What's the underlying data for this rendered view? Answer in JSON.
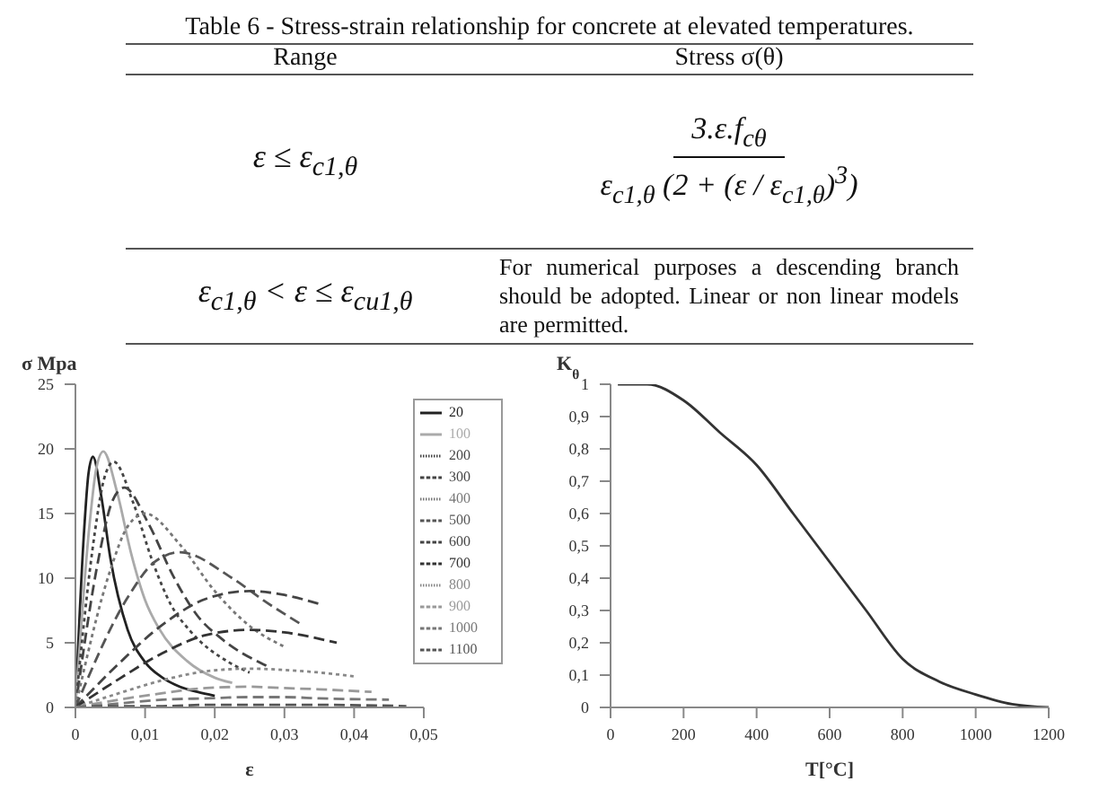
{
  "chart_data": [
    {
      "type": "other",
      "title": "Table 6 - Stress-strain relationship for concrete at elevated temperatures.",
      "annotations": [
        "Range",
        "Stress σ(θ)",
        "ε ≤ ε$_{c1,θ}$",
        "3.ε.f$_{cθ}$",
        "ε$_{c1,θ}$ (2 + (ε / ε$_{c1,θ}$)$^{3}$)",
        "ε$_{c1,θ}$ < ε ≤ ε$_{cu1,θ}$",
        "For numerical purposes a descending branch should be adopted. Linear or non linear models are permitted."
      ]
    },
    {
      "type": "line",
      "xlabel": "ε",
      "ylabel": "σ Mpa",
      "xlim": [
        0,
        0.05
      ],
      "ylim": [
        0,
        25
      ],
      "xticks": [
        0,
        {
          "value": 0.01,
          "label": "0,01"
        },
        {
          "value": 0.02,
          "label": "0,02"
        },
        {
          "value": 0.03,
          "label": "0,03"
        },
        {
          "value": 0.04,
          "label": "0,04"
        },
        {
          "value": 0.05,
          "label": "0,05"
        }
      ],
      "yticks": [
        0,
        5,
        10,
        15,
        20,
        25
      ],
      "grid": false,
      "legend": "top right",
      "marker": "none",
      "series": [
        {
          "name": "20",
          "color": "#222222",
          "line_style": "solid",
          "x": [
            0,
            0.00125,
            0.001875,
            0.0025,
            0.00375,
            0.005,
            0.0075,
            0.01,
            0.0125,
            0.015,
            0.0175,
            0.02
          ],
          "values": [
            0,
            13.7,
            18.1,
            19.4,
            16.2,
            11.6,
            6.0,
            3.5,
            2.3,
            1.6,
            1.2,
            0.9
          ]
        },
        {
          "name": "100",
          "color": "#aaaaaa",
          "line_style": "solid",
          "x": [
            0,
            0.002,
            0.003,
            0.004,
            0.006,
            0.008,
            0.01,
            0.012,
            0.016,
            0.02,
            0.0225
          ],
          "values": [
            0,
            14.0,
            18.5,
            19.8,
            16.6,
            11.9,
            8.3,
            6.1,
            3.6,
            2.3,
            1.9
          ]
        },
        {
          "name": "200",
          "color": "#444444",
          "line_style": "dotted",
          "x": [
            0,
            0.00275,
            0.004125,
            0.0055,
            0.00825,
            0.011,
            0.01375,
            0.0165,
            0.022,
            0.025
          ],
          "values": [
            0,
            13.4,
            17.7,
            19,
            15.9,
            11.4,
            7.9,
            5.9,
            3.5,
            2.7
          ]
        },
        {
          "name": "300",
          "color": "#444444",
          "line_style": "dashed",
          "x": [
            0,
            0.0035,
            0.00525,
            0.007,
            0.0105,
            0.014,
            0.0175,
            0.021,
            0.0275
          ],
          "values": [
            0,
            12.0,
            15.9,
            17,
            14.2,
            10.2,
            7.1,
            5.3,
            3.2
          ]
        },
        {
          "name": "400",
          "color": "#777777",
          "line_style": "dotted",
          "x": [
            0,
            0.005,
            0.0075,
            0.01,
            0.015,
            0.02,
            0.025,
            0.03
          ],
          "values": [
            0,
            10.6,
            14.0,
            15,
            12.6,
            9.0,
            6.3,
            4.7
          ]
        },
        {
          "name": "500",
          "color": "#555555",
          "line_style": "dashed",
          "x": [
            0,
            0.0075,
            0.01125,
            0.015,
            0.0225,
            0.0275,
            0.0325
          ],
          "values": [
            0,
            8.5,
            11.2,
            12,
            10.0,
            8.1,
            6.4
          ]
        },
        {
          "name": "600",
          "color": "#444444",
          "line_style": "dashed",
          "x": [
            0,
            0.00625,
            0.0125,
            0.01875,
            0.025,
            0.03,
            0.035
          ],
          "values": [
            0,
            3.4,
            6.4,
            8.4,
            9,
            8.7,
            8.0
          ]
        },
        {
          "name": "700",
          "color": "#333333",
          "line_style": "dashed",
          "x": [
            0,
            0.00625,
            0.0125,
            0.01875,
            0.025,
            0.03,
            0.0375
          ],
          "values": [
            0,
            2.2,
            4.2,
            5.6,
            6,
            5.8,
            5.0
          ]
        },
        {
          "name": "800",
          "color": "#888888",
          "line_style": "dotted",
          "x": [
            0,
            0.00625,
            0.0125,
            0.01875,
            0.025,
            0.03,
            0.035,
            0.04
          ],
          "values": [
            0,
            1.1,
            2.1,
            2.8,
            3,
            2.9,
            2.7,
            2.4
          ]
        },
        {
          "name": "900",
          "color": "#999999",
          "line_style": "dashed",
          "x": [
            0,
            0.00625,
            0.0125,
            0.01875,
            0.025,
            0.03,
            0.035,
            0.0425
          ],
          "values": [
            0,
            0.6,
            1.1,
            1.5,
            1.6,
            1.5,
            1.4,
            1.2
          ]
        },
        {
          "name": "1000",
          "color": "#777777",
          "line_style": "dashed",
          "x": [
            0,
            0.00625,
            0.0125,
            0.01875,
            0.025,
            0.03,
            0.035,
            0.045
          ],
          "values": [
            0,
            0.3,
            0.6,
            0.7,
            0.8,
            0.8,
            0.7,
            0.6
          ]
        },
        {
          "name": "1100",
          "color": "#555555",
          "line_style": "dashed",
          "x": [
            0,
            0.00625,
            0.0125,
            0.01875,
            0.025,
            0.03,
            0.035,
            0.0475
          ],
          "values": [
            0,
            0.1,
            0.1,
            0.2,
            0.2,
            0.2,
            0.2,
            0.1
          ]
        }
      ]
    },
    {
      "type": "line",
      "xlabel": "T[°C]",
      "ylabel": "K$_{θ}$",
      "xlim": [
        0,
        1200
      ],
      "ylim": [
        0,
        1
      ],
      "xticks": [
        0,
        200,
        400,
        600,
        800,
        1000,
        1200
      ],
      "yticks": [
        0,
        {
          "value": 0.1,
          "label": "0,1"
        },
        {
          "value": 0.2,
          "label": "0,2"
        },
        {
          "value": 0.3,
          "label": "0,3"
        },
        {
          "value": 0.4,
          "label": "0,4"
        },
        {
          "value": 0.5,
          "label": "0,5"
        },
        {
          "value": 0.6,
          "label": "0,6"
        },
        {
          "value": 0.7,
          "label": "0,7"
        },
        {
          "value": 0.8,
          "label": "0,8"
        },
        {
          "value": 0.9,
          "label": "0,9"
        },
        1
      ],
      "grid": false,
      "marker": "none",
      "series": [
        {
          "color": "#333333",
          "x": [
            20,
            100,
            200,
            300,
            400,
            500,
            600,
            700,
            800,
            900,
            1000,
            1100,
            1200
          ],
          "values": [
            1,
            1,
            0.95,
            0.85,
            0.75,
            0.6,
            0.45,
            0.3,
            0.15,
            0.08,
            0.04,
            0.01,
            0
          ]
        }
      ]
    }
  ]
}
